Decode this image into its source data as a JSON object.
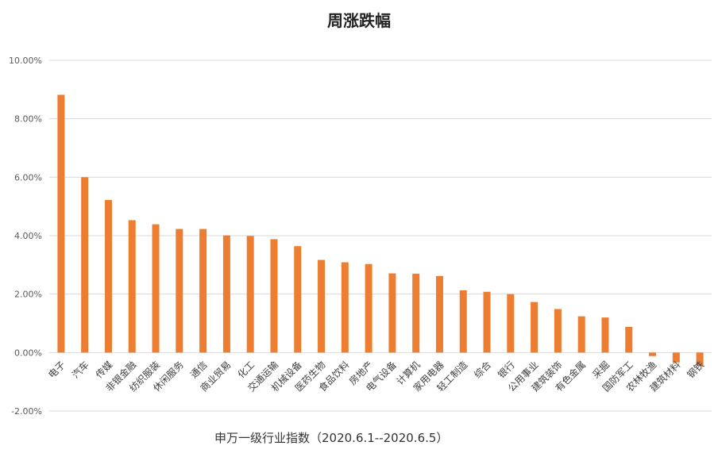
{
  "chart_data": {
    "type": "bar",
    "title": "周涨跌幅",
    "xlabel": "申万一级行业指数（2020.6.1--2020.6.5）",
    "ylabel": "",
    "ylim": [
      -2,
      10
    ],
    "yticks": [
      "-2.00%",
      "0.00%",
      "2.00%",
      "4.00%",
      "6.00%",
      "8.00%",
      "10.00%"
    ],
    "grid": true,
    "bar_color": "#ED7D31",
    "grid_color": "#D9D9D9",
    "categories": [
      "电子",
      "汽车",
      "传媒",
      "非银金融",
      "纺织服装",
      "休闲服务",
      "通信",
      "商业贸易",
      "化工",
      "交通运输",
      "机械设备",
      "医药生物",
      "食品饮料",
      "房地产",
      "电气设备",
      "计算机",
      "家用电器",
      "轻工制造",
      "综合",
      "银行",
      "公用事业",
      "建筑装饰",
      "有色金属",
      "采掘",
      "国防军工",
      "农林牧渔",
      "建筑材料",
      "钢铁"
    ],
    "values": [
      8.82,
      6.0,
      5.22,
      4.53,
      4.39,
      4.23,
      4.23,
      4.01,
      3.99,
      3.88,
      3.64,
      3.17,
      3.09,
      3.03,
      2.71,
      2.7,
      2.62,
      2.13,
      2.08,
      2.0,
      1.73,
      1.49,
      1.24,
      1.2,
      0.88,
      -0.12,
      -0.34,
      -0.45
    ]
  }
}
